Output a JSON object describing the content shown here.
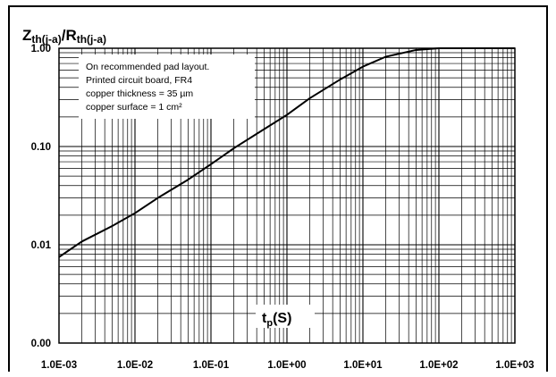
{
  "chart_data": {
    "type": "line",
    "title_main": "Z",
    "title_main_sub": "th(j-a)",
    "title_sep": "/R",
    "title_sep_sub": "th(j-a)",
    "xlabel_main": "t",
    "xlabel_sub": "p",
    "xlabel_unit": "(S)",
    "x_scale": "log",
    "y_scale": "log",
    "xlim": [
      0.001,
      1000
    ],
    "ylim": [
      0.001,
      1
    ],
    "x_tick_values": [
      0.001,
      0.01,
      0.1,
      1,
      10,
      100,
      1000
    ],
    "x_tick_labels": [
      "1.0E-03",
      "1.0E-02",
      "1.0E-01",
      "1.0E+00",
      "1.0E+01",
      "1.0E+02",
      "1.0E+03"
    ],
    "y_tick_values": [
      0.001,
      0.01,
      0.1,
      1
    ],
    "y_tick_labels": [
      "0.00",
      "0.01",
      "0.10",
      "1.00"
    ],
    "grid": true,
    "annotation": [
      "On recommended pad layout.",
      "Printed circuit board, FR4",
      "copper thickness = 35 µm",
      "copper surface = 1 cm²"
    ],
    "series": [
      {
        "x": [
          0.001,
          0.002,
          0.005,
          0.01,
          0.02,
          0.05,
          0.1,
          0.2,
          0.5,
          1,
          2,
          5,
          10,
          20,
          50,
          100,
          200,
          500,
          1000
        ],
        "y": [
          0.0075,
          0.0108,
          0.0155,
          0.021,
          0.03,
          0.046,
          0.066,
          0.096,
          0.15,
          0.21,
          0.31,
          0.48,
          0.65,
          0.82,
          0.96,
          1.0,
          1.0,
          1.0,
          1.0
        ]
      }
    ],
    "line_color": "#000000"
  }
}
